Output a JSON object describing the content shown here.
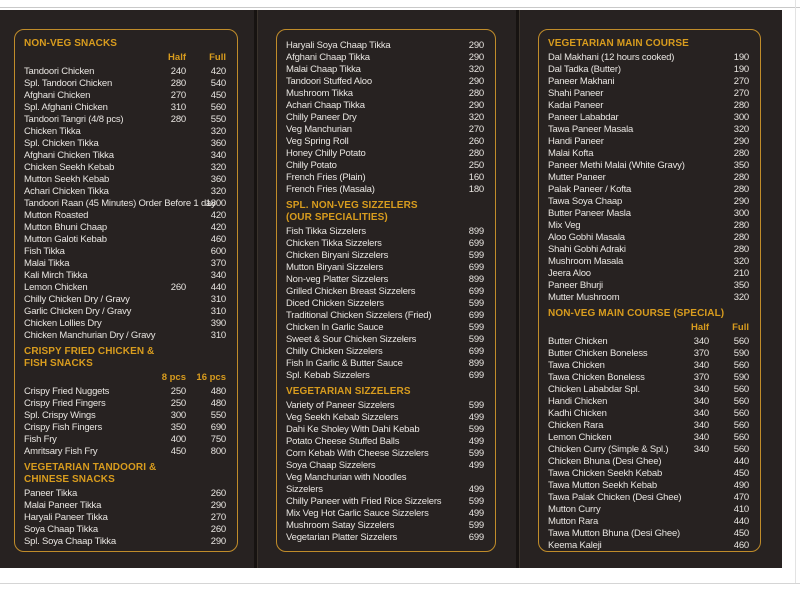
{
  "colors": {
    "page_bg": "#ffffff",
    "menu_bg": "#272221",
    "gold": "#d89c1e",
    "border_gold": "#c08c2a",
    "item_text": "#e8e5e1"
  },
  "panels": [
    {
      "id": "left",
      "sections": [
        {
          "header_lines": [
            "NON-VEG SNACKS"
          ],
          "columns": [
            "Half",
            "Full"
          ],
          "items": [
            {
              "name": "Tandoori Chicken",
              "half": "240",
              "full": "420"
            },
            {
              "name": "Spl. Tandoori Chicken",
              "half": "280",
              "full": "540"
            },
            {
              "name": "Afghani Chicken",
              "half": "270",
              "full": "450"
            },
            {
              "name": "Spl. Afghani Chicken",
              "half": "310",
              "full": "560"
            },
            {
              "name": "Tandoori Tangri (4/8 pcs)",
              "half": "280",
              "full": "550"
            },
            {
              "name": "Chicken Tikka",
              "full": "320"
            },
            {
              "name": "Spl. Chicken Tikka",
              "full": "360"
            },
            {
              "name": "Afghani Chicken Tikka",
              "full": "340"
            },
            {
              "name": "Chicken Seekh Kebab",
              "full": "320"
            },
            {
              "name": "Mutton Seekh Kebab",
              "full": "360"
            },
            {
              "name": "Achari Chicken Tikka",
              "full": "320"
            },
            {
              "name": "Tandoori Raan (45 Minutes) Order Before 1 day",
              "full": "1800"
            },
            {
              "name": "Mutton Roasted",
              "full": "420"
            },
            {
              "name": "Mutton Bhuni Chaap",
              "full": "420"
            },
            {
              "name": "Mutton Galoti Kebab",
              "full": "460"
            },
            {
              "name": "Fish Tikka",
              "full": "600"
            },
            {
              "name": "Malai Tikka",
              "full": "370"
            },
            {
              "name": "Kali Mirch Tikka",
              "full": "340"
            },
            {
              "name": "Lemon Chicken",
              "half": "260",
              "full": "440"
            },
            {
              "name": "Chilly Chicken Dry / Gravy",
              "full": "310"
            },
            {
              "name": "Garlic Chicken Dry / Gravy",
              "full": "310"
            },
            {
              "name": "Chicken Lollies Dry",
              "full": "390"
            },
            {
              "name": "Chicken Manchurian Dry / Gravy",
              "full": "310"
            }
          ]
        },
        {
          "header_lines": [
            "CRISPY FRIED CHICKEN &",
            "FISH SNACKS"
          ],
          "columns": [
            "8 pcs",
            "16 pcs"
          ],
          "items": [
            {
              "name": "Crispy Fried Nuggets",
              "half": "250",
              "full": "480"
            },
            {
              "name": "Crispy Fried Fingers",
              "half": "250",
              "full": "480"
            },
            {
              "name": "Spl. Crispy Wings",
              "half": "300",
              "full": "550"
            },
            {
              "name": "Crispy Fish Fingers",
              "half": "350",
              "full": "690"
            },
            {
              "name": "Fish Fry",
              "half": "400",
              "full": "750"
            },
            {
              "name": "Amritsary Fish Fry",
              "half": "450",
              "full": "800"
            }
          ]
        },
        {
          "header_lines": [
            "VEGETARIAN TANDOORI &",
            "CHINESE SNACKS"
          ],
          "items": [
            {
              "name": "Paneer Tikka",
              "full": "260"
            },
            {
              "name": "Malai Paneer Tikka",
              "full": "290"
            },
            {
              "name": "Haryali Paneer Tikka",
              "full": "270"
            },
            {
              "name": "Soya Chaap Tikka",
              "full": "260"
            },
            {
              "name": "Spl. Soya Chaap Tikka",
              "full": "290"
            }
          ]
        }
      ]
    },
    {
      "id": "middle",
      "sections": [
        {
          "header_lines": [],
          "items": [
            {
              "name": "Haryali Soya Chaap Tikka",
              "full": "290"
            },
            {
              "name": "Afghani Chaap Tikka",
              "full": "290"
            },
            {
              "name": "Malai Chaap Tikka",
              "full": "320"
            },
            {
              "name": "Tandoori Stuffed Aloo",
              "full": "290"
            },
            {
              "name": "Mushroom Tikka",
              "full": "280"
            },
            {
              "name": "Achari Chaap Tikka",
              "full": "290"
            },
            {
              "name": "Chilly Paneer Dry",
              "full": "320"
            },
            {
              "name": "Veg Manchurian",
              "full": "270"
            },
            {
              "name": "Veg Spring Roll",
              "full": "260"
            },
            {
              "name": "Honey Chilly Potato",
              "full": "280"
            },
            {
              "name": "Chilly Potato",
              "full": "250"
            },
            {
              "name": "French Fries (Plain)",
              "full": "160"
            },
            {
              "name": "French Fries (Masala)",
              "full": "180"
            }
          ]
        },
        {
          "header_lines": [
            "SPL. NON-VEG SIZZELERS",
            "(OUR SPECIALITIES)"
          ],
          "items": [
            {
              "name": "Fish Tikka Sizzelers",
              "full": "899"
            },
            {
              "name": "Chicken Tikka Sizzelers",
              "full": "699"
            },
            {
              "name": "Chicken Biryani Sizzelers",
              "full": "599"
            },
            {
              "name": "Mutton Biryani Sizzelers",
              "full": "699"
            },
            {
              "name": "Non-veg Platter Sizzelers",
              "full": "899"
            },
            {
              "name": "Grilled Chicken Breast Sizzelers",
              "full": "699"
            },
            {
              "name": "Diced Chicken Sizzelers",
              "full": "599"
            },
            {
              "name": "Traditional Chicken Sizzelers (Fried)",
              "full": "699"
            },
            {
              "name": "Chicken In Garlic Sauce",
              "full": "599"
            },
            {
              "name": "Sweet & Sour Chicken Sizzelers",
              "full": "599"
            },
            {
              "name": "Chilly Chicken Sizzelers",
              "full": "699"
            },
            {
              "name": "Fish In Garlic & Butter Sauce",
              "full": "899"
            },
            {
              "name": "Spl. Kebab Sizzelers",
              "full": "699"
            }
          ]
        },
        {
          "header_lines": [
            "VEGETARIAN SIZZELERS"
          ],
          "items": [
            {
              "name": "Variety of Paneer Sizzelers",
              "full": "599"
            },
            {
              "name": "Veg Seekh Kebab Sizzelers",
              "full": "499"
            },
            {
              "name": "Dahi Ke Sholey With Dahi Kebab",
              "full": "599"
            },
            {
              "name": "Potato Cheese Stuffed Balls",
              "full": "499"
            },
            {
              "name": "Corn Kebab With Cheese Sizzelers",
              "full": "599"
            },
            {
              "name": "Soya Chaap Sizzelers",
              "full": "499"
            },
            {
              "name": "Veg Manchurian with Noodles",
              "full": ""
            },
            {
              "name": "Sizzelers",
              "full": "499"
            },
            {
              "name": "Chilly Paneer with Fried Rice Sizzelers",
              "full": "599"
            },
            {
              "name": "Mix Veg Hot Garlic Sauce Sizzelers",
              "full": "499"
            },
            {
              "name": "Mushroom Satay Sizzelers",
              "full": "599"
            },
            {
              "name": "Vegetarian Platter Sizzelers",
              "full": "699"
            }
          ]
        }
      ]
    },
    {
      "id": "right",
      "sections": [
        {
          "header_lines": [
            "VEGETARIAN MAIN COURSE"
          ],
          "items": [
            {
              "name": "Dal Makhani (12 hours cooked)",
              "full": "190"
            },
            {
              "name": "Dal Tadka (Butter)",
              "full": "190"
            },
            {
              "name": "Paneer Makhani",
              "full": "270"
            },
            {
              "name": "Shahi Paneer",
              "full": "270"
            },
            {
              "name": "Kadai Paneer",
              "full": "280"
            },
            {
              "name": "Paneer Lababdar",
              "full": "300"
            },
            {
              "name": "Tawa Paneer Masala",
              "full": "320"
            },
            {
              "name": "Handi Paneer",
              "full": "290"
            },
            {
              "name": "Malai Kofta",
              "full": "280"
            },
            {
              "name": "Paneer Methi Malai (White Gravy)",
              "full": "350"
            },
            {
              "name": "Mutter Paneer",
              "full": "280"
            },
            {
              "name": "Palak Paneer / Kofta",
              "full": "280"
            },
            {
              "name": "Tawa Soya Chaap",
              "full": "290"
            },
            {
              "name": "Butter Paneer Masla",
              "full": "300"
            },
            {
              "name": "Mix Veg",
              "full": "280"
            },
            {
              "name": "Aloo Gobhi Masala",
              "full": "280"
            },
            {
              "name": "Shahi Gobhi Adraki",
              "full": "280"
            },
            {
              "name": "Mushroom Masala",
              "full": "320"
            },
            {
              "name": "Jeera Aloo",
              "full": "210"
            },
            {
              "name": "Paneer Bhurji",
              "full": "350"
            },
            {
              "name": "Mutter Mushroom",
              "full": "320"
            }
          ]
        },
        {
          "header_lines": [
            "NON-VEG MAIN COURSE (SPECIAL)"
          ],
          "columns": [
            "Half",
            "Full"
          ],
          "items": [
            {
              "name": "Butter Chicken",
              "half": "340",
              "full": "560"
            },
            {
              "name": "Butter Chicken Boneless",
              "half": "370",
              "full": "590"
            },
            {
              "name": "Tawa Chicken",
              "half": "340",
              "full": "560"
            },
            {
              "name": "Tawa Chicken Boneless",
              "half": "370",
              "full": "590"
            },
            {
              "name": "Chicken Lababdar Spl.",
              "half": "340",
              "full": "560"
            },
            {
              "name": "Handi Chicken",
              "half": "340",
              "full": "560"
            },
            {
              "name": "Kadhi Chicken",
              "half": "340",
              "full": "560"
            },
            {
              "name": "Chicken Rara",
              "half": "340",
              "full": "560"
            },
            {
              "name": "Lemon Chicken",
              "half": "340",
              "full": "560"
            },
            {
              "name": "Chicken Curry (Simple & Spl.)",
              "half": "340",
              "full": "560"
            },
            {
              "name": "Chicken Bhuna (Desi Ghee)",
              "full": "440"
            },
            {
              "name": "Tawa Chicken Seekh Kebab",
              "full": "450"
            },
            {
              "name": "Tawa Mutton Seekh Kebab",
              "full": "490"
            },
            {
              "name": "Tawa Palak Chicken (Desi Ghee)",
              "full": "470"
            },
            {
              "name": "Mutton Curry",
              "full": "410"
            },
            {
              "name": "Mutton Rara",
              "full": "440"
            },
            {
              "name": "Tawa Mutton Bhuna (Desi Ghee)",
              "full": "450"
            },
            {
              "name": "Keema Kaleji",
              "full": "460"
            }
          ]
        }
      ]
    }
  ]
}
